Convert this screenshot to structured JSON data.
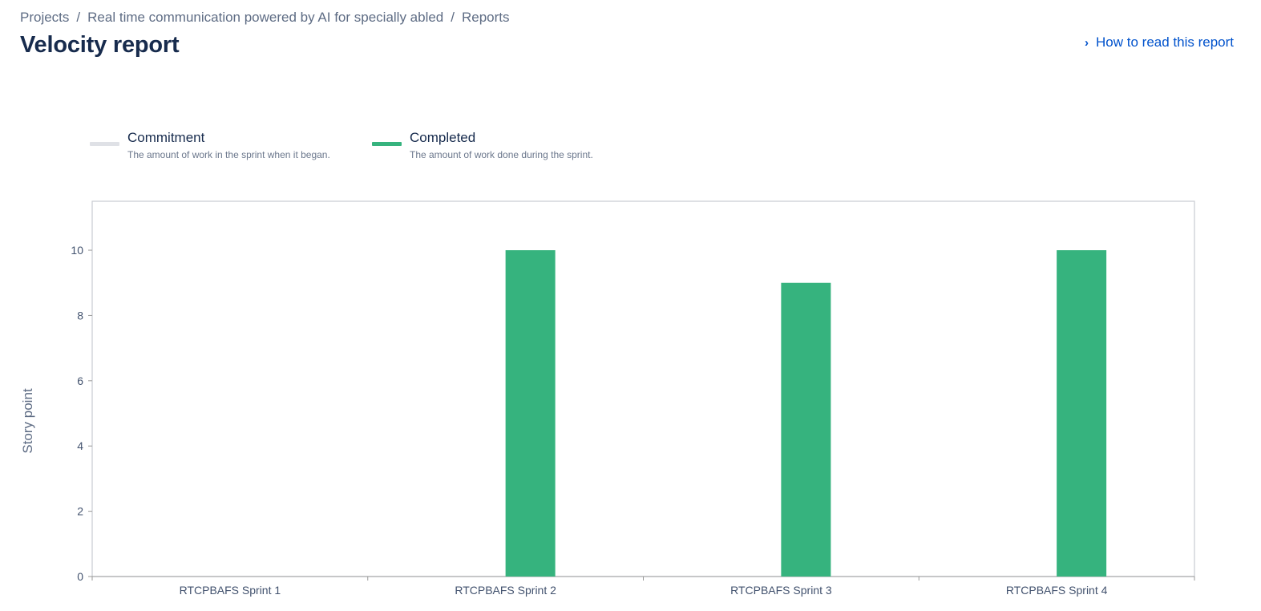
{
  "breadcrumb": {
    "items": [
      "Projects",
      "Real time communication powered by AI for specially abled",
      "Reports"
    ],
    "separator": "/"
  },
  "page_title": "Velocity report",
  "help_link": {
    "label": "How to read this report",
    "icon": "chevron-right-icon"
  },
  "colors": {
    "commitment": "#dfe1e6",
    "completed": "#36b37e",
    "link": "#0052cc",
    "title": "#172b4d"
  },
  "legend": [
    {
      "title": "Commitment",
      "description": "The amount of work in the sprint when it began.",
      "color": "#dfe1e6"
    },
    {
      "title": "Completed",
      "description": "The amount of work done during the sprint.",
      "color": "#36b37e"
    }
  ],
  "chart_data": {
    "type": "bar",
    "ylabel": "Story point",
    "xlabel": "",
    "ylim": [
      0,
      11.5
    ],
    "yticks": [
      0,
      2,
      4,
      6,
      8,
      10
    ],
    "grid": false,
    "legend_position": "top-left",
    "categories": [
      "RTCPBAFS Sprint 1",
      "RTCPBAFS Sprint 2",
      "RTCPBAFS Sprint 3",
      "RTCPBAFS Sprint 4"
    ],
    "series": [
      {
        "name": "Commitment",
        "values": [
          0,
          0,
          0,
          0
        ],
        "color": "#dfe1e6"
      },
      {
        "name": "Completed",
        "values": [
          0,
          10,
          9,
          10
        ],
        "color": "#36b37e"
      }
    ]
  }
}
